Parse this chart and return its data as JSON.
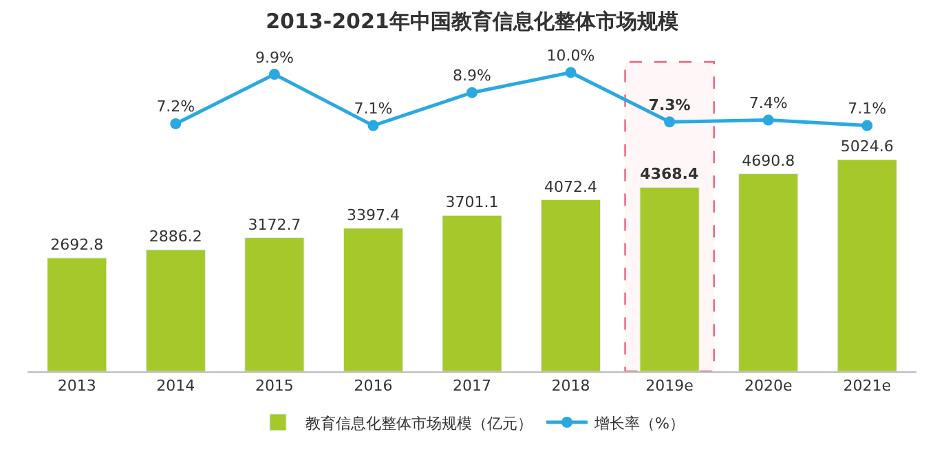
{
  "chart_data": [
    {
      "type": "line",
      "title": "2013-2021年中国教育信息化整体市场规模",
      "categories": [
        null,
        null,
        null,
        null,
        null,
        null,
        null,
        null,
        null
      ],
      "marker": "circle",
      "grid": false,
      "series": [
        {
          "name": "增长率（%）",
          "color": "#2aa9e0",
          "values": [
            null,
            7.2,
            9.9,
            7.1,
            8.9,
            10.0,
            7.3,
            7.4,
            7.1
          ],
          "value_labels": [
            null,
            "7.2%",
            "9.9%",
            "7.1%",
            "8.9%",
            "10.0%",
            "7.3%",
            "7.4%",
            "7.1%"
          ]
        }
      ]
    },
    {
      "type": "bar",
      "categories": [
        "2013",
        "2014",
        "2015",
        "2016",
        "2017",
        "2018",
        "2019e",
        "2020e",
        "2021e"
      ],
      "grid": false,
      "legend": "bottom",
      "series": [
        {
          "name": "教育信息化整体市场规模（亿元）",
          "color": "#a5c92a",
          "values": [
            2692.8,
            2886.2,
            3172.7,
            3397.4,
            3701.1,
            4072.4,
            4368.4,
            4690.8,
            5024.6
          ],
          "value_labels": [
            "2692.8",
            "2886.2",
            "3172.7",
            "3397.4",
            "3701.1",
            "4072.4",
            "4368.4",
            "4690.8",
            "5024.6"
          ]
        }
      ],
      "bands": [
        {
          "axis": "x",
          "from": "2019e",
          "to": "2019e",
          "color": "#e8637a"
        }
      ]
    }
  ]
}
